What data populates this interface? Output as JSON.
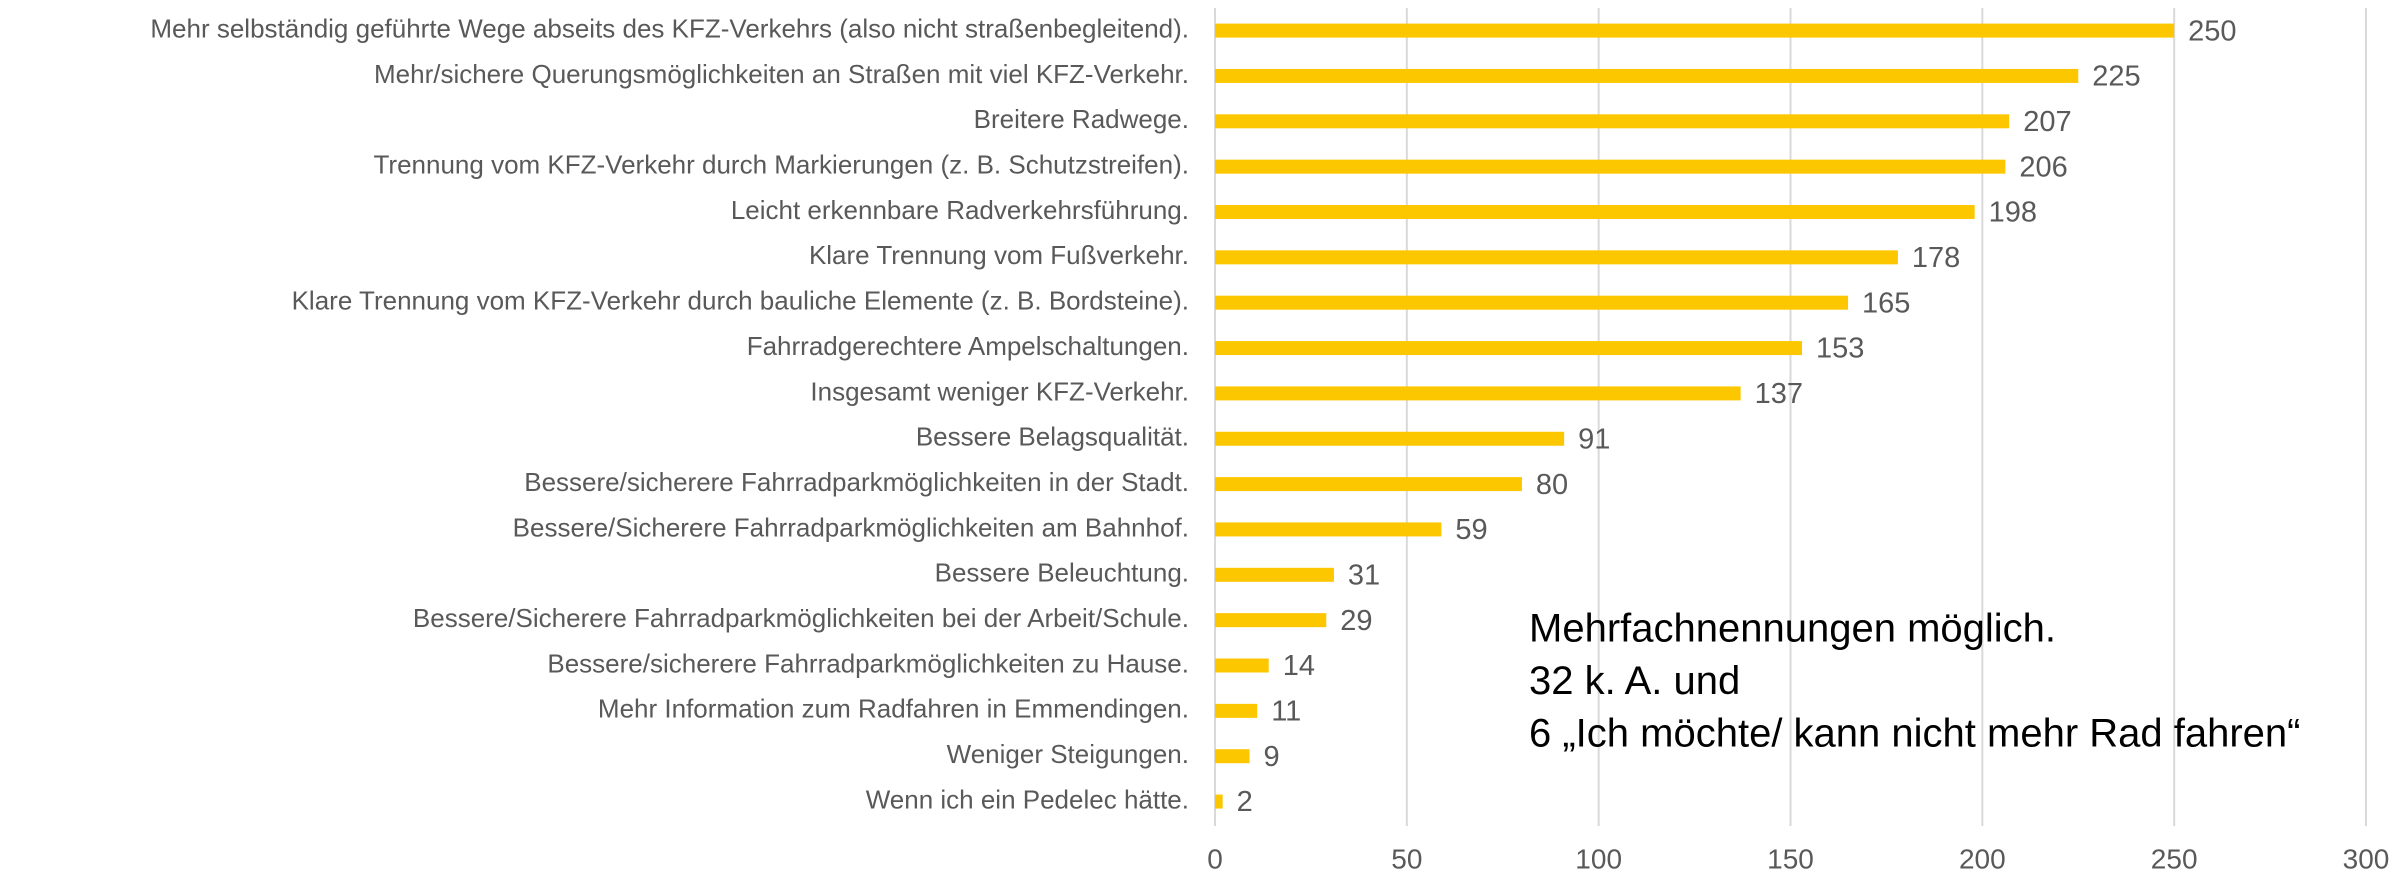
{
  "chart_data": {
    "type": "barh",
    "categories": [
      "Mehr selbständig geführte Wege abseits des KFZ-Verkehrs (also nicht straßenbegleitend).",
      "Mehr/sichere Querungsmöglichkeiten an Straßen mit viel KFZ-Verkehr.",
      "Breitere Radwege.",
      "Trennung vom KFZ-Verkehr durch Markierungen (z. B. Schutzstreifen).",
      "Leicht erkennbare Radverkehrsführung.",
      "Klare Trennung vom Fußverkehr.",
      "Klare Trennung vom KFZ-Verkehr durch bauliche Elemente (z. B. Bordsteine).",
      "Fahrradgerechtere Ampelschaltungen.",
      "Insgesamt weniger KFZ-Verkehr.",
      "Bessere Belagsqualität.",
      "Bessere/sicherere Fahrradparkmöglichkeiten in der Stadt.",
      "Bessere/Sicherere Fahrradparkmöglichkeiten am Bahnhof.",
      "Bessere Beleuchtung.",
      "Bessere/Sicherere Fahrradparkmöglichkeiten bei der Arbeit/Schule.",
      "Bessere/sicherere Fahrradparkmöglichkeiten zu Hause.",
      "Mehr Information zum Radfahren in Emmendingen.",
      "Weniger Steigungen.",
      "Wenn ich ein Pedelec hätte."
    ],
    "values": [
      250,
      225,
      207,
      206,
      198,
      178,
      165,
      153,
      137,
      91,
      80,
      59,
      31,
      29,
      14,
      11,
      9,
      2
    ],
    "color": "#fdc700",
    "xlim": [
      0,
      300
    ],
    "xticks": [
      0,
      50,
      100,
      150,
      200,
      250,
      300
    ],
    "grid": true,
    "annotation": [
      "Mehrfachnennungen möglich.",
      "32 k. A. und",
      "6 „Ich möchte/ kann nicht mehr Rad fahren“"
    ]
  }
}
